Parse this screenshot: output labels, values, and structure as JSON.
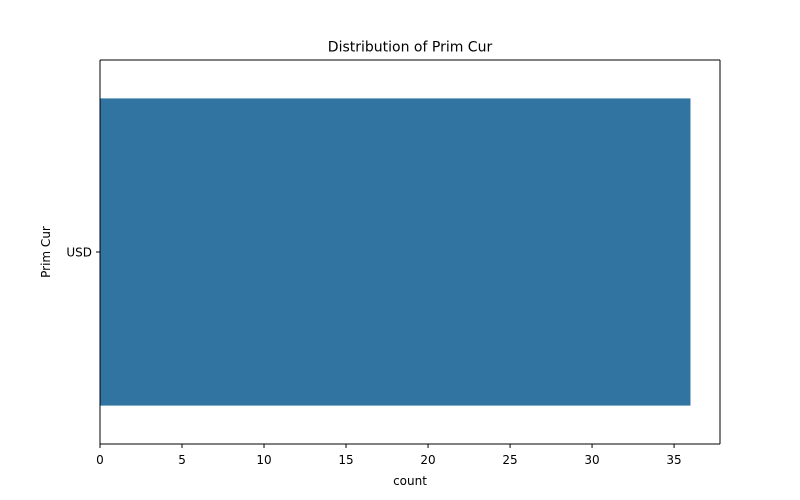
{
  "chart_data": {
    "type": "bar",
    "orientation": "horizontal",
    "title": "Distribution of Prim Cur",
    "xlabel": "count",
    "ylabel": "Prim Cur",
    "categories": [
      "USD"
    ],
    "values": [
      36
    ],
    "xlim": [
      0,
      37.8
    ],
    "xticks": [
      0,
      5,
      10,
      15,
      20,
      25,
      30,
      35
    ],
    "grid": false,
    "bar_color": "#3274a1"
  }
}
